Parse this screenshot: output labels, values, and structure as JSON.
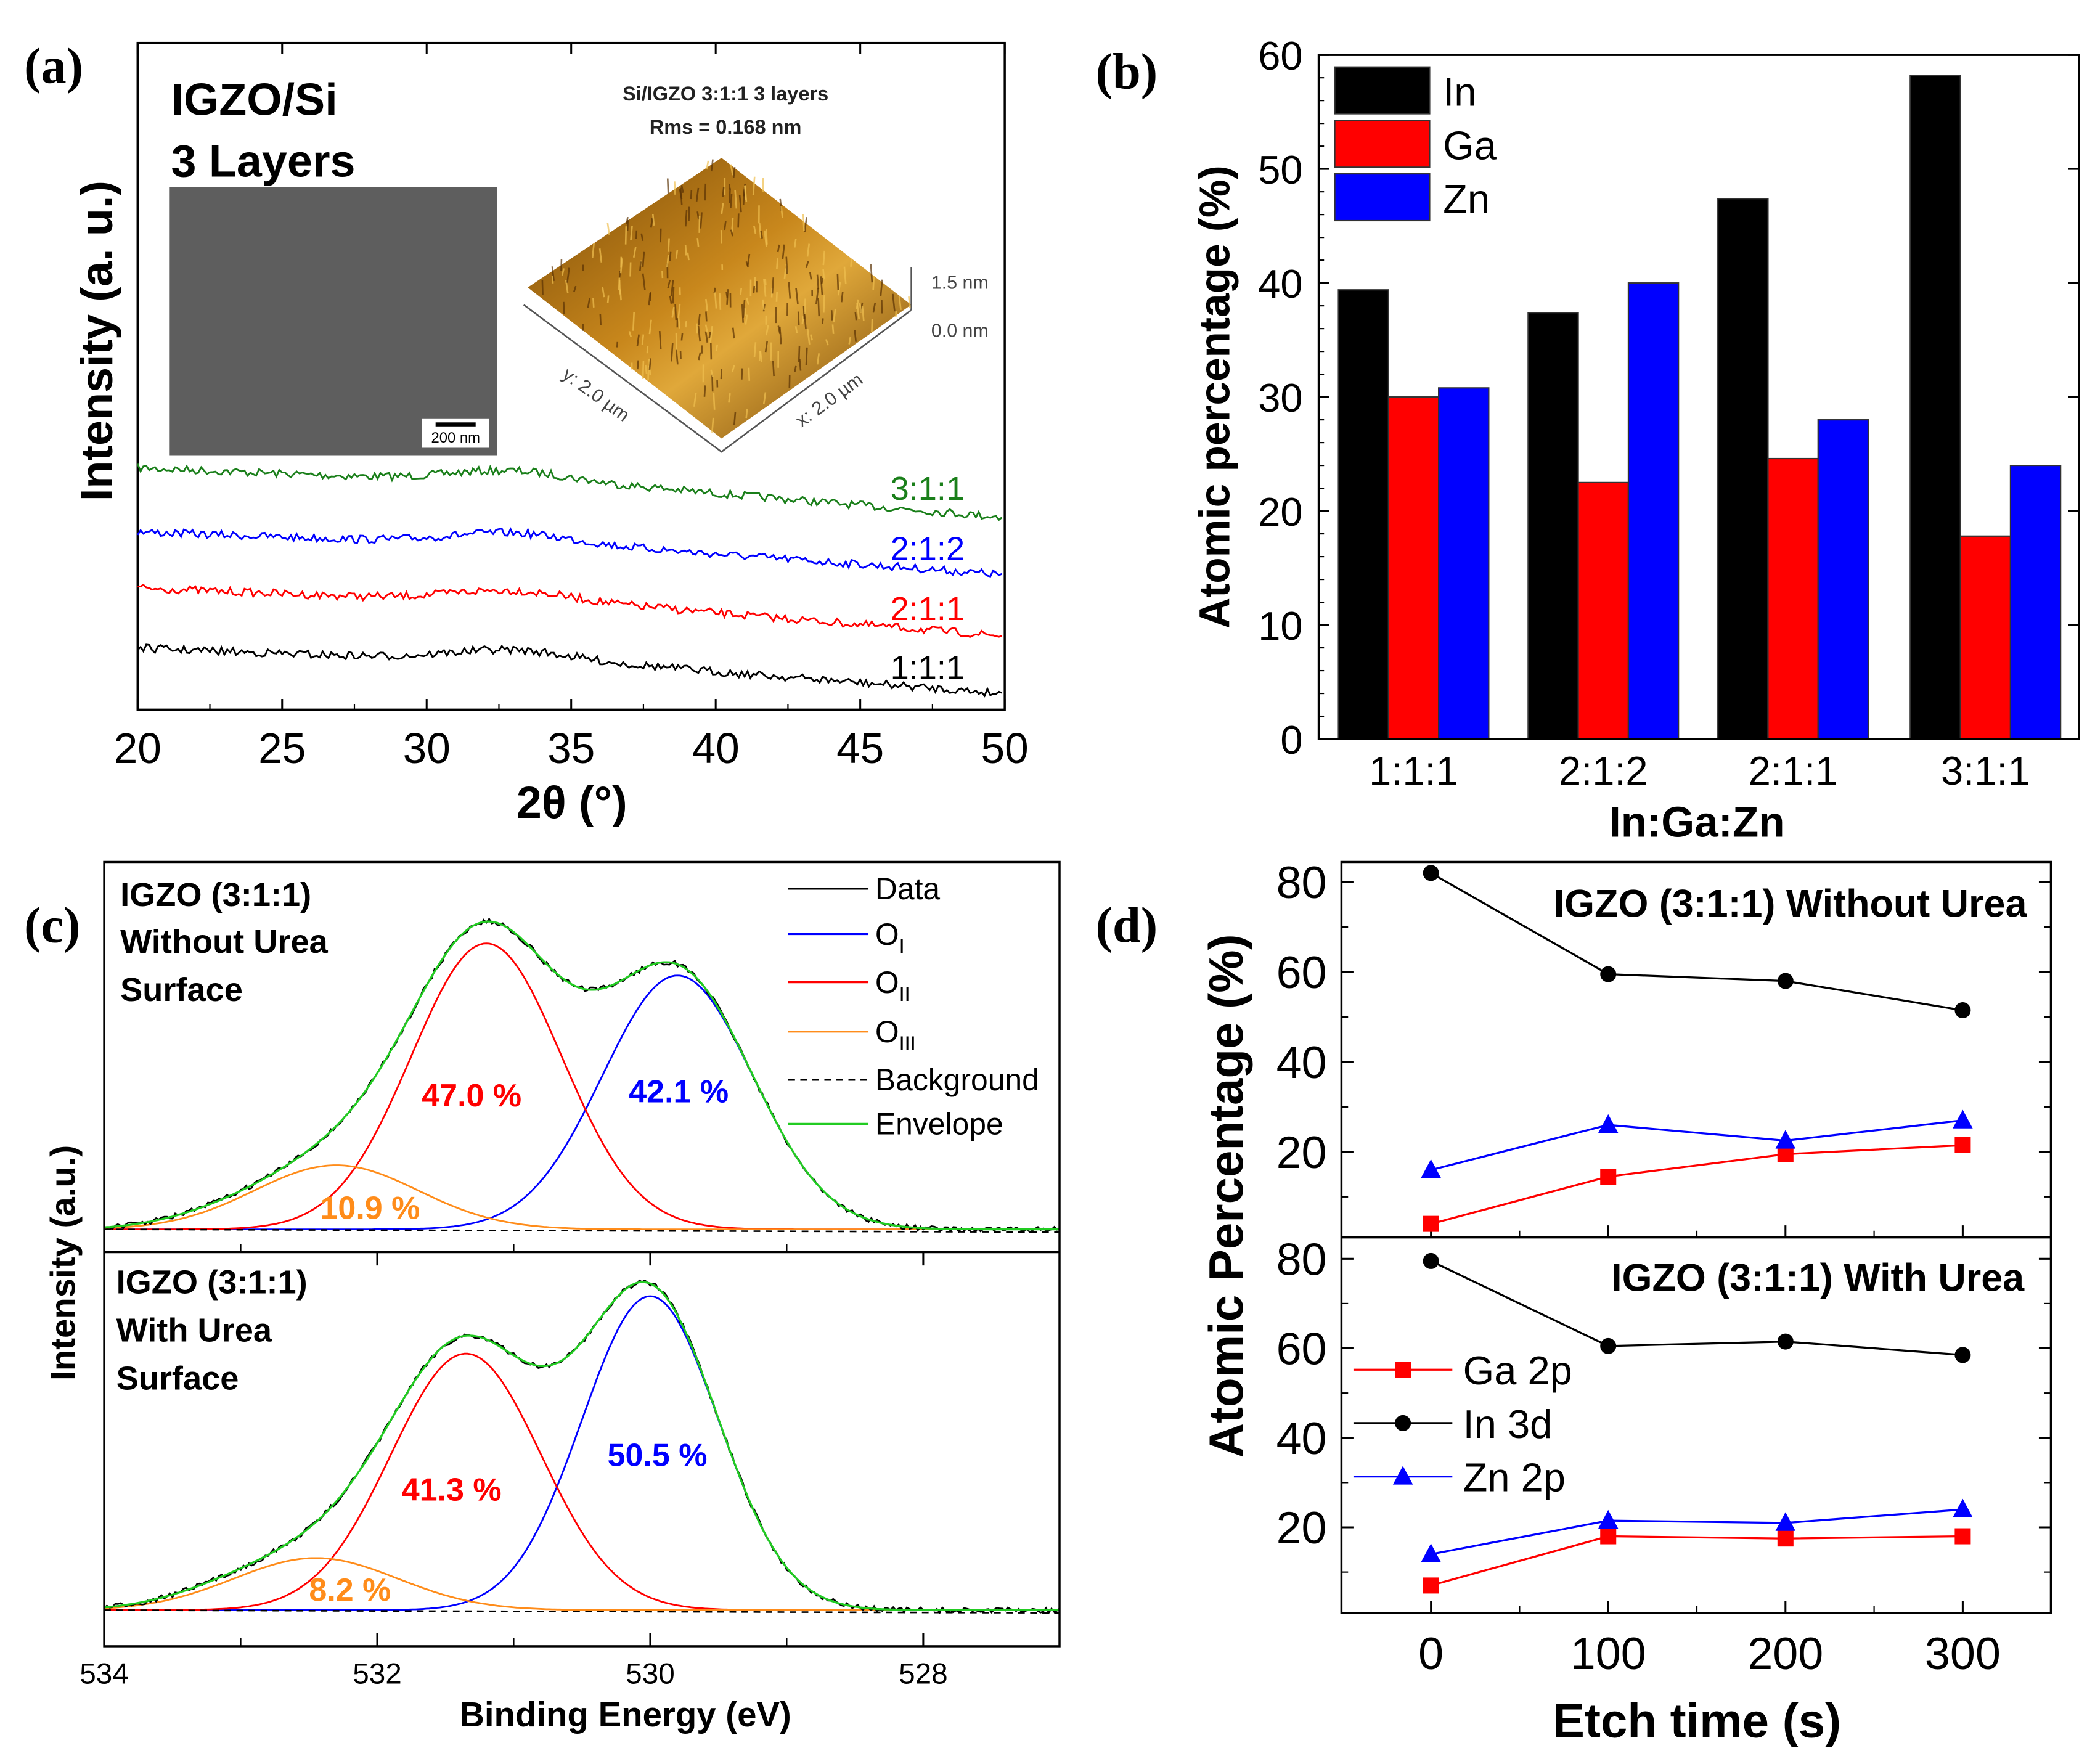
{
  "chart_data": [
    {
      "panel": "(a)",
      "type": "line",
      "xlabel": "2θ (°)",
      "ylabel": "Intensity (a. u.)",
      "xlim": [
        20,
        50
      ],
      "xticks": [
        20,
        25,
        30,
        35,
        40,
        45,
        50
      ],
      "series": [
        {
          "name": "3:1:1",
          "color": "#1a7f1a"
        },
        {
          "name": "2:1:2",
          "color": "#0000ff"
        },
        {
          "name": "2:1:1",
          "color": "#ff0000"
        },
        {
          "name": "1:1:1",
          "color": "#000000"
        }
      ],
      "inset": {
        "title_line1": "IGZO/Si",
        "title_line2": "3 Layers",
        "sem_scale_bar": "200 nm",
        "afm_title": "Si/IGZO 3:1:1 3 layers",
        "afm_rms": "Rms = 0.168 nm",
        "afm_z_max": "1.5 nm",
        "afm_z_min": "0.0 nm",
        "afm_y_axis": "y: 2.0 µm",
        "afm_x_axis": "x: 2.0 µm"
      }
    },
    {
      "panel": "(b)",
      "type": "bar",
      "xlabel": "In:Ga:Zn",
      "ylabel": "Atomic percentage (%)",
      "ylim": [
        0,
        60
      ],
      "yticks": [
        0,
        10,
        20,
        30,
        40,
        50,
        60
      ],
      "categories": [
        "1:1:1",
        "2:1:2",
        "2:1:1",
        "3:1:1"
      ],
      "legend": "top-left",
      "series": [
        {
          "name": "In",
          "color": "#000000",
          "values": [
            39.4,
            37.4,
            47.4,
            58.2
          ]
        },
        {
          "name": "Ga",
          "color": "#ff0000",
          "values": [
            30.0,
            22.5,
            24.6,
            17.8
          ]
        },
        {
          "name": "Zn",
          "color": "#0000ff",
          "values": [
            30.8,
            40.0,
            28.0,
            24.0
          ]
        }
      ]
    },
    {
      "panel": "(c)",
      "type": "line",
      "xlabel": "Binding Energy (eV)",
      "ylabel": "Intensity (a.u.)",
      "xlim": [
        534,
        527
      ],
      "xticks": [
        534,
        532,
        530,
        528
      ],
      "legend": [
        {
          "text": "Data",
          "sub": "",
          "color": "#000000",
          "dash": false
        },
        {
          "text": "O",
          "sub": "I",
          "color": "#0000ff",
          "dash": false
        },
        {
          "text": "O",
          "sub": "II",
          "color": "#ff0000",
          "dash": false
        },
        {
          "text": "O",
          "sub": "III",
          "color": "#ff8c1a",
          "dash": false
        },
        {
          "text": "Background",
          "sub": "",
          "color": "#000000",
          "dash": true
        },
        {
          "text": "Envelope",
          "sub": "",
          "color": "#22cc22",
          "dash": false
        }
      ],
      "subplots": [
        {
          "title": [
            "IGZO (3:1:1)",
            "Without Urea",
            "Surface"
          ],
          "components": [
            {
              "name": "OI",
              "center_eV": 529.8,
              "percent": "42.1 %",
              "color": "#0000ff"
            },
            {
              "name": "OII",
              "center_eV": 531.2,
              "percent": "47.0 %",
              "color": "#ff0000"
            },
            {
              "name": "OIII",
              "center_eV": 532.3,
              "percent": "10.9 %",
              "color": "#ff8c1a"
            }
          ]
        },
        {
          "title": [
            "IGZO (3:1:1)",
            "With Urea",
            "Surface"
          ],
          "components": [
            {
              "name": "OI",
              "center_eV": 530.0,
              "percent": "50.5 %",
              "color": "#0000ff"
            },
            {
              "name": "OII",
              "center_eV": 531.35,
              "percent": "41.3 %",
              "color": "#ff0000"
            },
            {
              "name": "OIII",
              "center_eV": 532.45,
              "percent": "8.2 %",
              "color": "#ff8c1a"
            }
          ]
        }
      ]
    },
    {
      "panel": "(d)",
      "type": "line",
      "xlabel": "Etch time (s)",
      "ylabel": "Atomic Percentage (%)",
      "x": [
        0,
        100,
        200,
        300
      ],
      "xticks": [
        0,
        100,
        200,
        300
      ],
      "xlim": [
        -50,
        350
      ],
      "yticks": [
        20,
        40,
        60,
        80
      ],
      "legend_entries": [
        {
          "name": "Ga 2p",
          "color": "#ff0000",
          "marker": "square"
        },
        {
          "name": "In 3d",
          "color": "#000000",
          "marker": "circle"
        },
        {
          "name": "Zn 2p",
          "color": "#0000ff",
          "marker": "triangle"
        }
      ],
      "subplots": [
        {
          "title": "IGZO (3:1:1) Without Urea",
          "series": [
            {
              "name": "Ga 2p",
              "values": [
                4,
                14.5,
                19.5,
                21.5
              ]
            },
            {
              "name": "In 3d",
              "values": [
                82,
                59.5,
                58,
                51.5
              ]
            },
            {
              "name": "Zn 2p",
              "values": [
                16,
                26,
                22.5,
                27
              ]
            }
          ]
        },
        {
          "title": "IGZO (3:1:1) With Urea",
          "series": [
            {
              "name": "Ga 2p",
              "values": [
                7,
                18,
                17.5,
                18
              ]
            },
            {
              "name": "In 3d",
              "values": [
                79.5,
                60.5,
                61.5,
                58.5
              ]
            },
            {
              "name": "Zn 2p",
              "values": [
                14,
                21.5,
                21,
                24
              ]
            }
          ]
        }
      ]
    }
  ]
}
